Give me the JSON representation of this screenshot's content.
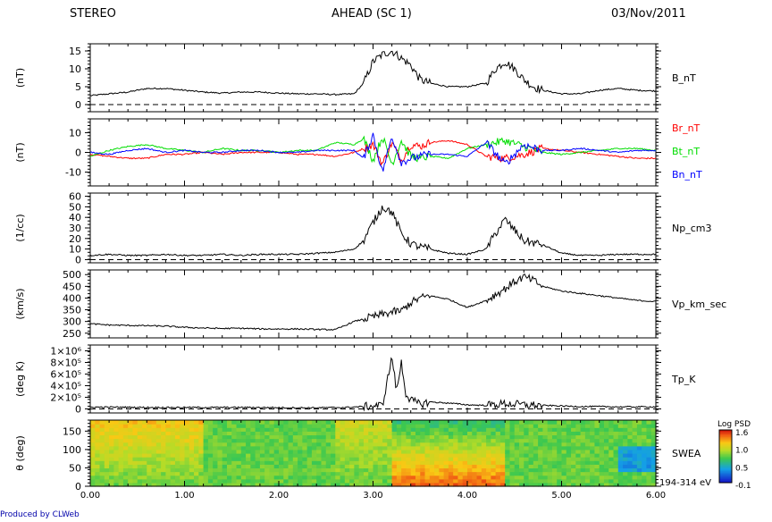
{
  "header": {
    "left": "STEREO",
    "center": "AHEAD (SC 1)",
    "right": "03/Nov/2011"
  },
  "footer": {
    "credit": "Produced by CLWeb"
  },
  "colors": {
    "br": "#ff0000",
    "bt": "#00dd00",
    "bn": "#0000ff",
    "trace": "#000000"
  },
  "chart_data": [
    {
      "type": "line",
      "ylabel": "(nT)",
      "ylim": [
        -2,
        17
      ],
      "yticks": [
        "0",
        "5",
        "10",
        "15"
      ],
      "zero_line": true,
      "series": [
        {
          "name": "B_nT",
          "x": [
            0.0,
            0.2,
            0.4,
            0.6,
            0.8,
            1.0,
            1.2,
            1.4,
            1.6,
            1.8,
            2.0,
            2.2,
            2.4,
            2.6,
            2.8,
            2.9,
            3.0,
            3.1,
            3.2,
            3.3,
            3.4,
            3.5,
            3.6,
            3.8,
            4.0,
            4.2,
            4.3,
            4.4,
            4.5,
            4.6,
            4.7,
            4.8,
            5.0,
            5.2,
            5.4,
            5.6,
            5.8,
            6.0
          ],
          "values": [
            2.5,
            3,
            3.5,
            4.5,
            4.5,
            4,
            3.5,
            3.2,
            3.5,
            3.5,
            3.2,
            3,
            3,
            2.8,
            3,
            6,
            12,
            14,
            15,
            13,
            11,
            7,
            6,
            5,
            5,
            6,
            10,
            12,
            10,
            7,
            5,
            4,
            3,
            3,
            4,
            4.5,
            4,
            3.8
          ]
        }
      ]
    },
    {
      "type": "line",
      "ylabel": "(nT)",
      "ylim": [
        -17,
        17
      ],
      "yticks": [
        "-10",
        "0",
        "10"
      ],
      "zero_line": false,
      "series": [
        {
          "name": "Br_nT",
          "x": [
            0.0,
            0.2,
            0.4,
            0.6,
            0.8,
            1.0,
            1.2,
            1.4,
            1.6,
            1.8,
            2.0,
            2.2,
            2.4,
            2.6,
            2.8,
            2.9,
            3.0,
            3.1,
            3.2,
            3.3,
            3.4,
            3.5,
            3.6,
            3.8,
            4.0,
            4.2,
            4.4,
            4.6,
            4.8,
            5.0,
            5.2,
            5.4,
            5.6,
            5.8,
            6.0
          ],
          "values": [
            -1,
            -2,
            -3,
            -3,
            -1,
            -1,
            0,
            -1,
            0,
            0,
            0,
            -1,
            -1,
            -2,
            0,
            2,
            4,
            -6,
            5,
            -4,
            4,
            3,
            5,
            6,
            4,
            -2,
            -3,
            -1,
            2,
            1,
            0,
            -1,
            -2,
            -3,
            -3
          ]
        },
        {
          "name": "Bt_nT",
          "x": [
            0.0,
            0.2,
            0.4,
            0.6,
            0.8,
            1.0,
            1.2,
            1.4,
            1.6,
            1.8,
            2.0,
            2.2,
            2.4,
            2.6,
            2.8,
            2.9,
            3.0,
            3.1,
            3.2,
            3.3,
            3.4,
            3.5,
            3.6,
            3.8,
            4.0,
            4.2,
            4.4,
            4.6,
            4.8,
            5.0,
            5.2,
            5.4,
            5.6,
            5.8,
            6.0
          ],
          "values": [
            -2,
            1,
            3,
            4,
            2,
            1,
            0,
            2,
            1,
            1,
            0,
            1,
            1,
            5,
            4,
            7,
            -4,
            8,
            -6,
            6,
            -2,
            -3,
            -2,
            -3,
            2,
            4,
            6,
            3,
            0,
            -1,
            0,
            1,
            2,
            2,
            1
          ]
        },
        {
          "name": "Bn_nT",
          "x": [
            0.0,
            0.2,
            0.4,
            0.6,
            0.8,
            1.0,
            1.2,
            1.4,
            1.6,
            1.8,
            2.0,
            2.2,
            2.4,
            2.6,
            2.8,
            2.9,
            3.0,
            3.1,
            3.2,
            3.3,
            3.4,
            3.5,
            3.6,
            3.8,
            4.0,
            4.2,
            4.4,
            4.6,
            4.8,
            5.0,
            5.2,
            5.4,
            5.6,
            5.8,
            6.0
          ],
          "values": [
            0,
            -1,
            1,
            2,
            0,
            1,
            0,
            0,
            1,
            1,
            0,
            0,
            1,
            1,
            1,
            -3,
            9,
            -10,
            8,
            -5,
            -3,
            -2,
            -1,
            -1,
            -2,
            5,
            -6,
            4,
            1,
            1,
            2,
            1,
            0,
            1,
            1
          ]
        }
      ]
    },
    {
      "type": "line",
      "ylabel": "(1/cc)",
      "ylim": [
        -3,
        63
      ],
      "yticks": [
        "0",
        "10",
        "20",
        "30",
        "40",
        "50",
        "60"
      ],
      "zero_line": true,
      "series": [
        {
          "name": "Np_cm3",
          "x": [
            0.0,
            0.2,
            0.4,
            0.6,
            0.8,
            1.0,
            1.2,
            1.4,
            1.6,
            1.8,
            2.0,
            2.2,
            2.4,
            2.6,
            2.8,
            2.9,
            3.0,
            3.1,
            3.2,
            3.3,
            3.4,
            3.5,
            3.6,
            3.8,
            4.0,
            4.2,
            4.3,
            4.4,
            4.5,
            4.6,
            4.8,
            5.0,
            5.2,
            5.4,
            5.6,
            5.8,
            6.0
          ],
          "values": [
            4,
            5,
            4,
            4,
            5,
            4,
            4,
            5,
            4,
            5,
            5,
            5,
            6,
            7,
            10,
            18,
            35,
            50,
            45,
            25,
            15,
            12,
            10,
            6,
            5,
            10,
            25,
            38,
            28,
            18,
            14,
            6,
            4,
            4,
            5,
            5,
            5
          ]
        }
      ]
    },
    {
      "type": "line",
      "ylabel": "(km/s)",
      "ylim": [
        230,
        520
      ],
      "yticks": [
        "250",
        "300",
        "350",
        "400",
        "450",
        "500"
      ],
      "zero_line": false,
      "series": [
        {
          "name": "Vp_km_sec",
          "x": [
            0.0,
            0.2,
            0.4,
            0.6,
            0.8,
            1.0,
            1.2,
            1.4,
            1.6,
            1.8,
            2.0,
            2.2,
            2.4,
            2.6,
            2.8,
            2.9,
            3.0,
            3.1,
            3.2,
            3.3,
            3.4,
            3.5,
            3.6,
            3.8,
            4.0,
            4.2,
            4.4,
            4.5,
            4.6,
            4.7,
            4.8,
            5.0,
            5.2,
            5.4,
            5.6,
            5.8,
            6.0
          ],
          "values": [
            290,
            285,
            283,
            282,
            280,
            275,
            272,
            270,
            271,
            268,
            268,
            268,
            266,
            265,
            300,
            310,
            320,
            330,
            340,
            345,
            380,
            400,
            410,
            395,
            360,
            390,
            440,
            470,
            490,
            475,
            450,
            430,
            420,
            410,
            400,
            390,
            385
          ]
        }
      ]
    },
    {
      "type": "line",
      "ylabel": "(deg K)",
      "ylim": [
        -70000,
        1100000
      ],
      "yticks": [
        "0",
        "2×10⁵",
        "4×10⁵",
        "6×10⁵",
        "8×10⁵",
        "1×10⁶"
      ],
      "zero_line": true,
      "series": [
        {
          "name": "Tp_K",
          "x": [
            0.0,
            0.3,
            0.6,
            0.9,
            1.2,
            1.5,
            1.8,
            2.1,
            2.4,
            2.7,
            2.9,
            3.1,
            3.2,
            3.25,
            3.3,
            3.35,
            3.4,
            3.5,
            3.6,
            3.8,
            4.0,
            4.2,
            4.4,
            4.6,
            4.8,
            5.0,
            5.2,
            5.4,
            5.6,
            5.8,
            6.0
          ],
          "values": [
            30000,
            30000,
            25000,
            25000,
            25000,
            25000,
            25000,
            20000,
            20000,
            25000,
            40000,
            60000,
            900000,
            300000,
            800000,
            250000,
            150000,
            80000,
            120000,
            100000,
            70000,
            60000,
            90000,
            70000,
            60000,
            50000,
            40000,
            40000,
            35000,
            35000,
            35000
          ]
        }
      ]
    },
    {
      "type": "heatmap",
      "ylabel": "θ (deg)",
      "ylim": [
        0,
        180
      ],
      "yticks": [
        "0",
        "50",
        "100",
        "150"
      ],
      "label": "SWEA",
      "energy": "194-314 eV",
      "colorbar": {
        "title": "Log PSD",
        "ticks": [
          "1.6",
          "1.0",
          "0.5",
          "-0.1"
        ]
      }
    }
  ],
  "xaxis": {
    "ticks": [
      "0.00",
      "1.00",
      "2.00",
      "3.00",
      "4.00",
      "5.00",
      "6.00"
    ],
    "range": [
      0,
      6
    ]
  }
}
